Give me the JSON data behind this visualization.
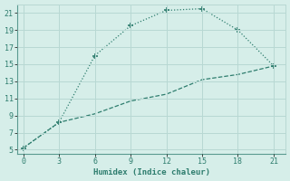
{
  "line1_x": [
    0,
    3,
    6,
    9,
    12,
    15,
    18,
    21
  ],
  "line1_y": [
    5.2,
    8.2,
    16.0,
    19.5,
    21.3,
    21.5,
    19.0,
    14.8
  ],
  "line2_x": [
    0,
    3,
    6,
    9,
    12,
    15,
    18,
    21
  ],
  "line2_y": [
    5.2,
    8.2,
    9.2,
    10.7,
    11.5,
    13.2,
    13.8,
    14.8
  ],
  "color": "#2e7d6e",
  "bg_color": "#d6eee9",
  "grid_color": "#b8d8d3",
  "xlabel": "Humidex (Indice chaleur)",
  "xlim": [
    -0.5,
    22
  ],
  "ylim": [
    4.5,
    22
  ],
  "xticks": [
    0,
    3,
    6,
    9,
    12,
    15,
    18,
    21
  ],
  "yticks": [
    5,
    7,
    9,
    11,
    13,
    15,
    17,
    19,
    21
  ]
}
